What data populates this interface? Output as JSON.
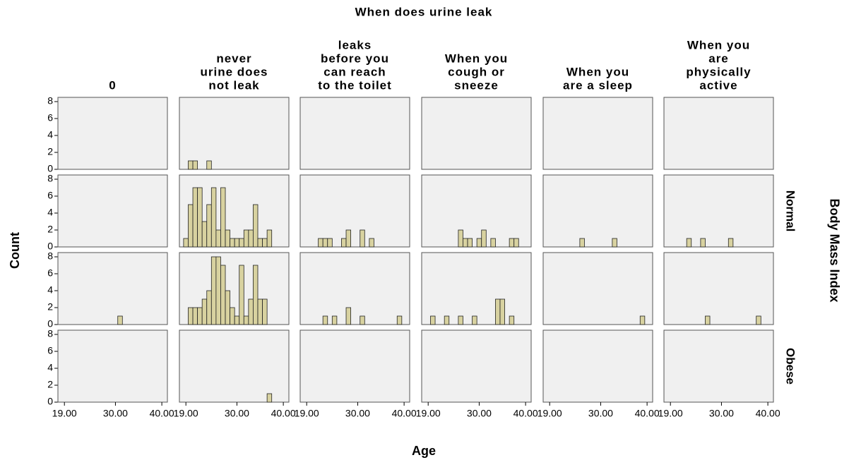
{
  "chart_data": {
    "type": "histogram",
    "title": "When does urine leak",
    "x_label": "Age",
    "y_label": "Count",
    "facet_label": "Body Mass Index",
    "column_labels": [
      [
        "0"
      ],
      [
        "never",
        "urine does",
        "not leak"
      ],
      [
        "leaks",
        "before you",
        "can reach",
        "to the toilet"
      ],
      [
        "When you",
        "cough or",
        "sneeze"
      ],
      [
        "When you",
        "are a sleep"
      ],
      [
        "When you",
        "are",
        "physically",
        "active"
      ]
    ],
    "row_labels": [
      null,
      "Normal",
      null,
      "Obese"
    ],
    "color": "#d8d2a0",
    "bins": [
      18.5,
      19.5,
      20.5,
      21.5,
      22.5,
      23.5,
      24.5,
      25.5,
      26.5,
      27.5,
      28.5,
      29.5,
      30.5,
      31.5,
      32.5,
      33.5,
      34.5,
      35.5,
      36.5,
      37.5,
      38.5,
      39.5,
      40.5
    ],
    "xlim": [
      17.6,
      41.2
    ],
    "ylim": [
      0,
      8.5
    ],
    "xticks": [
      {
        "value": 19,
        "label": "19.00"
      },
      {
        "value": 30,
        "label": "30.00"
      },
      {
        "value": 40,
        "label": "40.00"
      }
    ],
    "yticks": [
      0,
      2,
      4,
      6,
      8
    ],
    "panels": [
      [
        [
          0,
          0,
          0,
          0,
          0,
          0,
          0,
          0,
          0,
          0,
          0,
          0,
          0,
          0,
          0,
          0,
          0,
          0,
          0,
          0,
          0,
          0
        ],
        [
          0,
          1,
          1,
          0,
          0,
          1,
          0,
          0,
          0,
          0,
          0,
          0,
          0,
          0,
          0,
          0,
          0,
          0,
          0,
          0,
          0,
          0
        ],
        [
          0,
          0,
          0,
          0,
          0,
          0,
          0,
          0,
          0,
          0,
          0,
          0,
          0,
          0,
          0,
          0,
          0,
          0,
          0,
          0,
          0,
          0
        ],
        [
          0,
          0,
          0,
          0,
          0,
          0,
          0,
          0,
          0,
          0,
          0,
          0,
          0,
          0,
          0,
          0,
          0,
          0,
          0,
          0,
          0,
          0
        ],
        [
          0,
          0,
          0,
          0,
          0,
          0,
          0,
          0,
          0,
          0,
          0,
          0,
          0,
          0,
          0,
          0,
          0,
          0,
          0,
          0,
          0,
          0
        ],
        [
          0,
          0,
          0,
          0,
          0,
          0,
          0,
          0,
          0,
          0,
          0,
          0,
          0,
          0,
          0,
          0,
          0,
          0,
          0,
          0,
          0,
          0
        ]
      ],
      [
        [
          0,
          0,
          0,
          0,
          0,
          0,
          0,
          0,
          0,
          0,
          0,
          0,
          0,
          0,
          0,
          0,
          0,
          0,
          0,
          0,
          0,
          0
        ],
        [
          1,
          5,
          7,
          7,
          3,
          5,
          7,
          2,
          7,
          2,
          1,
          1,
          1,
          2,
          2,
          5,
          1,
          1,
          2,
          0,
          0,
          0
        ],
        [
          0,
          0,
          0,
          1,
          1,
          1,
          0,
          0,
          1,
          2,
          0,
          0,
          2,
          0,
          1,
          0,
          0,
          0,
          0,
          0,
          0,
          0
        ],
        [
          0,
          0,
          0,
          0,
          0,
          0,
          0,
          2,
          1,
          1,
          0,
          1,
          2,
          0,
          1,
          0,
          0,
          0,
          1,
          1,
          0,
          0
        ],
        [
          0,
          0,
          0,
          0,
          0,
          0,
          0,
          1,
          0,
          0,
          0,
          0,
          0,
          0,
          1,
          0,
          0,
          0,
          0,
          0,
          0,
          0
        ],
        [
          0,
          0,
          0,
          0,
          1,
          0,
          0,
          1,
          0,
          0,
          0,
          0,
          0,
          1,
          0,
          0,
          0,
          0,
          0,
          0,
          0,
          0
        ]
      ],
      [
        [
          0,
          0,
          0,
          0,
          0,
          0,
          0,
          0,
          0,
          0,
          0,
          0,
          1,
          0,
          0,
          0,
          0,
          0,
          0,
          0,
          0,
          0
        ],
        [
          0,
          2,
          2,
          2,
          3,
          4,
          8,
          8,
          7,
          4,
          2,
          1,
          7,
          1,
          3,
          7,
          3,
          3,
          0,
          0,
          0,
          0
        ],
        [
          0,
          0,
          0,
          0,
          1,
          0,
          1,
          0,
          0,
          2,
          0,
          0,
          1,
          0,
          0,
          0,
          0,
          0,
          0,
          0,
          1,
          0
        ],
        [
          0,
          1,
          0,
          0,
          1,
          0,
          0,
          1,
          0,
          0,
          1,
          0,
          0,
          0,
          0,
          3,
          3,
          0,
          1,
          0,
          0,
          0
        ],
        [
          0,
          0,
          0,
          0,
          0,
          0,
          0,
          0,
          0,
          0,
          0,
          0,
          0,
          0,
          0,
          0,
          0,
          0,
          0,
          0,
          1,
          0
        ],
        [
          0,
          0,
          0,
          0,
          0,
          0,
          0,
          0,
          1,
          0,
          0,
          0,
          0,
          0,
          0,
          0,
          0,
          0,
          0,
          1,
          0,
          0
        ]
      ],
      [
        [
          0,
          0,
          0,
          0,
          0,
          0,
          0,
          0,
          0,
          0,
          0,
          0,
          0,
          0,
          0,
          0,
          0,
          0,
          0,
          0,
          0,
          0
        ],
        [
          0,
          0,
          0,
          0,
          0,
          0,
          0,
          0,
          0,
          0,
          0,
          0,
          0,
          0,
          0,
          0,
          0,
          0,
          1,
          0,
          0,
          0
        ],
        [
          0,
          0,
          0,
          0,
          0,
          0,
          0,
          0,
          0,
          0,
          0,
          0,
          0,
          0,
          0,
          0,
          0,
          0,
          0,
          0,
          0,
          0
        ],
        [
          0,
          0,
          0,
          0,
          0,
          0,
          0,
          0,
          0,
          0,
          0,
          0,
          0,
          0,
          0,
          0,
          0,
          0,
          0,
          0,
          0,
          0
        ],
        [
          0,
          0,
          0,
          0,
          0,
          0,
          0,
          0,
          0,
          0,
          0,
          0,
          0,
          0,
          0,
          0,
          0,
          0,
          0,
          0,
          0,
          0
        ],
        [
          0,
          0,
          0,
          0,
          0,
          0,
          0,
          0,
          0,
          0,
          0,
          0,
          0,
          0,
          0,
          0,
          0,
          0,
          0,
          0,
          0,
          0
        ]
      ]
    ]
  }
}
